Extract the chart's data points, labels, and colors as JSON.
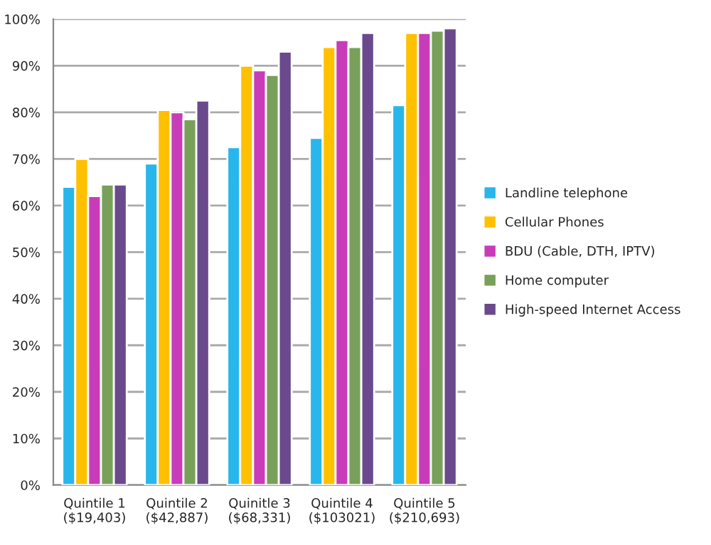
{
  "chart_data": {
    "type": "bar",
    "categories": [
      "Quintile 1\n($19,403)",
      "Quintile 2\n($42,887)",
      "Quinitle 3\n($68,331)",
      "Quintile 4\n($103021)",
      "Quintile 5\n($210,693)"
    ],
    "series": [
      {
        "name": "Landline telephone",
        "color": "#29b6ea",
        "values": [
          64,
          69,
          72.5,
          74.5,
          81.5
        ]
      },
      {
        "name": "Cellular Phones",
        "color": "#ffc000",
        "values": [
          70,
          80.5,
          90,
          94,
          97
        ]
      },
      {
        "name": "BDU (Cable, DTH, IPTV)",
        "color": "#c83cb9",
        "values": [
          62,
          80,
          89,
          95.5,
          97
        ]
      },
      {
        "name": "Home computer",
        "color": "#78a05a",
        "values": [
          64.5,
          78.5,
          88,
          94,
          97.5
        ]
      },
      {
        "name": "High-speed Internet Access",
        "color": "#6a4a8c",
        "values": [
          64.5,
          82.5,
          93,
          97,
          98
        ]
      }
    ],
    "ylim": [
      0,
      100
    ],
    "yticks": [
      {
        "value": 0,
        "label": "0%"
      },
      {
        "value": 10,
        "label": "10%"
      },
      {
        "value": 20,
        "label": "20%"
      },
      {
        "value": 30,
        "label": "30%"
      },
      {
        "value": 40,
        "label": "40%"
      },
      {
        "value": 50,
        "label": "50%"
      },
      {
        "value": 60,
        "label": "60%"
      },
      {
        "value": 70,
        "label": "70%"
      },
      {
        "value": 80,
        "label": "80%"
      },
      {
        "value": 90,
        "label": "90%"
      },
      {
        "value": 100,
        "label": "100%"
      }
    ],
    "grid": "y",
    "legend": "right"
  }
}
